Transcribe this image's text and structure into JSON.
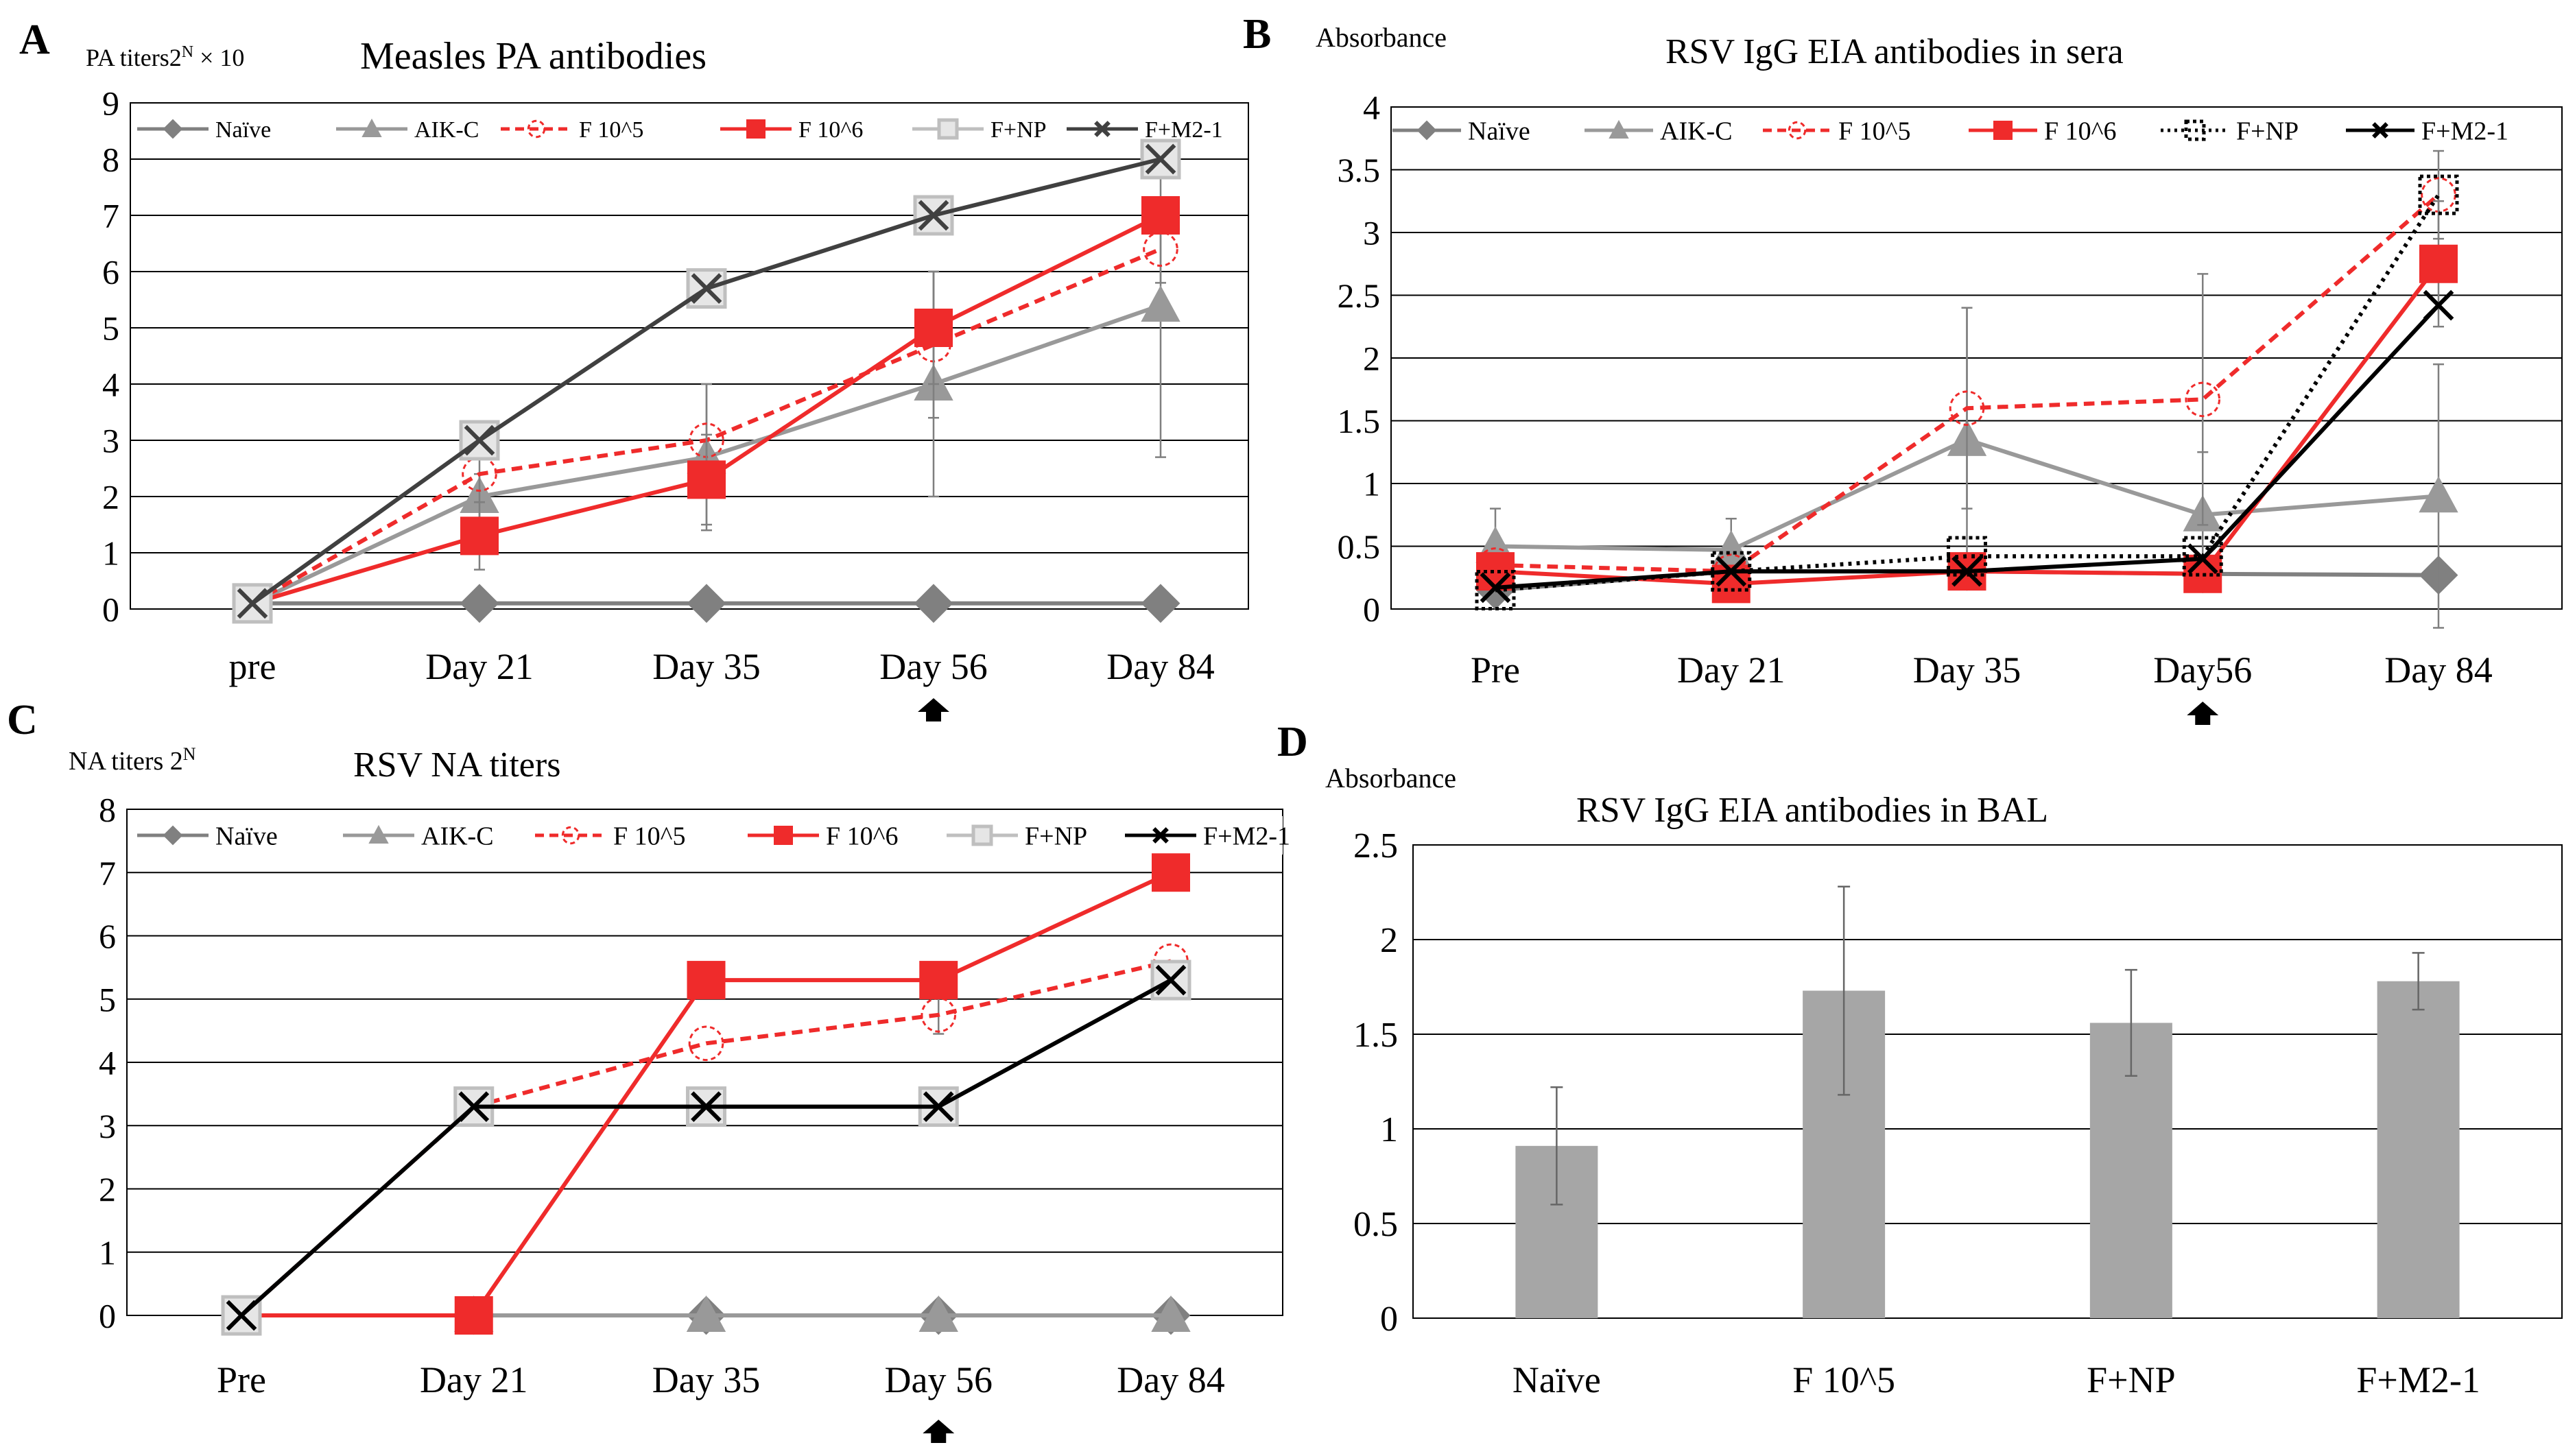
{
  "chart_data": [
    {
      "panel": "A",
      "type": "line",
      "title": "Measles PA antibodies",
      "ylabel": "PA titers2^N × 10",
      "ylabel_parts": {
        "main": "PA titers2",
        "sup": "N",
        "tail": " × 10"
      },
      "categories": [
        "pre",
        "Day 21",
        "Day 35",
        "Day 56",
        "Day 84"
      ],
      "ylim": [
        0,
        9
      ],
      "yticks": [
        0,
        1,
        2,
        3,
        4,
        5,
        6,
        7,
        8,
        9
      ],
      "arrow_at": "Day 56",
      "legend": "top",
      "series": [
        {
          "name": "Naïve",
          "color": "#808080",
          "dash": "",
          "marker": "diamond",
          "values": [
            0.1,
            0.1,
            0.1,
            0.1,
            0.1
          ],
          "err": [
            0,
            0,
            0,
            0,
            0
          ]
        },
        {
          "name": "AIK-C",
          "color": "#999999",
          "dash": "",
          "marker": "triangle",
          "values": [
            0.1,
            2.0,
            2.7,
            4.0,
            5.4
          ],
          "err": [
            0,
            0.4,
            1.3,
            2.0,
            2.7
          ]
        },
        {
          "name": "F 10^5",
          "color": "#ef2b2b",
          "dash": "dash",
          "marker": "circle-dashed",
          "values": [
            0.1,
            2.4,
            3.0,
            4.7,
            6.4
          ],
          "err": [
            0,
            0.5,
            1.0,
            1.3,
            0.6
          ]
        },
        {
          "name": "F 10^6",
          "color": "#ef2b2b",
          "dash": "",
          "marker": "square",
          "values": [
            0.1,
            1.3,
            2.3,
            5.0,
            7.0
          ],
          "err": [
            0,
            0.6,
            0.8,
            1.0,
            0
          ]
        },
        {
          "name": "F+NP",
          "color": "#bfbfbf",
          "dash": "",
          "marker": "square-open",
          "values": [
            0.1,
            3.0,
            5.7,
            7.0,
            8.0
          ],
          "err": [
            0,
            0,
            0,
            0,
            0
          ]
        },
        {
          "name": "F+M2-1",
          "color": "#404040",
          "dash": "",
          "marker": "x",
          "values": [
            0.1,
            3.0,
            5.7,
            7.0,
            8.0
          ],
          "err": [
            0,
            0,
            0,
            0,
            0
          ]
        }
      ]
    },
    {
      "panel": "B",
      "type": "line",
      "title": "RSV IgG EIA antibodies in sera",
      "ylabel": "Absorbance",
      "categories": [
        "Pre",
        "Day 21",
        "Day 35",
        "Day56",
        "Day 84"
      ],
      "ylim": [
        0,
        4
      ],
      "yticks": [
        0,
        0.5,
        1,
        1.5,
        2,
        2.5,
        3,
        3.5,
        4
      ],
      "arrow_at": "Day56",
      "legend": "top",
      "series": [
        {
          "name": "Naïve",
          "color": "#808080",
          "dash": "",
          "marker": "diamond",
          "values": [
            0.15,
            0.3,
            0.3,
            0.28,
            0.27
          ],
          "err": [
            0,
            0,
            0,
            0,
            0
          ]
        },
        {
          "name": "AIK-C",
          "color": "#999999",
          "dash": "",
          "marker": "triangle",
          "values": [
            0.5,
            0.47,
            1.35,
            0.75,
            0.9
          ],
          "err": [
            0.3,
            0.25,
            1.05,
            0.5,
            1.05
          ]
        },
        {
          "name": "F 10^5",
          "color": "#ef2b2b",
          "dash": "dash",
          "marker": "circle-dashed",
          "values": [
            0.35,
            0.3,
            1.6,
            1.67,
            3.3
          ],
          "err": [
            0,
            0,
            0.8,
            1.0,
            0.35
          ]
        },
        {
          "name": "F 10^6",
          "color": "#ef2b2b",
          "dash": "",
          "marker": "square",
          "values": [
            0.3,
            0.2,
            0.3,
            0.28,
            2.75
          ],
          "err": [
            0,
            0,
            0,
            0,
            0.5
          ]
        },
        {
          "name": "F+NP",
          "color": "#000000",
          "dash": "dot",
          "marker": "square-dotted",
          "values": [
            0.15,
            0.3,
            0.42,
            0.42,
            3.3
          ],
          "err": [
            0,
            0,
            0,
            0,
            0
          ]
        },
        {
          "name": "F+M2-1",
          "color": "#000000",
          "dash": "",
          "marker": "x",
          "values": [
            0.17,
            0.3,
            0.3,
            0.4,
            2.42
          ],
          "err": [
            0,
            0,
            0,
            0,
            0
          ]
        }
      ]
    },
    {
      "panel": "C",
      "type": "line",
      "title": "RSV NA titers",
      "ylabel": "NA titers 2^N",
      "ylabel_parts": {
        "main": "NA titers  2",
        "sup": "N",
        "tail": ""
      },
      "categories": [
        "Pre",
        "Day 21",
        "Day 35",
        "Day 56",
        "Day 84"
      ],
      "ylim": [
        0,
        8
      ],
      "yticks": [
        0,
        1,
        2,
        3,
        4,
        5,
        6,
        7,
        8
      ],
      "arrow_at": "Day 56",
      "legend": "top",
      "series": [
        {
          "name": "Naïve",
          "color": "#808080",
          "dash": "",
          "marker": "diamond",
          "values": [
            0,
            0,
            0,
            0,
            0
          ],
          "err": [
            0,
            0,
            0,
            0,
            0
          ]
        },
        {
          "name": "AIK-C",
          "color": "#999999",
          "dash": "",
          "marker": "triangle",
          "values": [
            0,
            0,
            0,
            0,
            0
          ],
          "err": [
            0,
            0,
            0,
            0,
            0
          ]
        },
        {
          "name": "F 10^5",
          "color": "#ef2b2b",
          "dash": "dash",
          "marker": "circle-dashed",
          "values": [
            0,
            3.3,
            4.3,
            4.75,
            5.6
          ],
          "err": [
            0,
            0,
            0,
            0.3,
            0
          ]
        },
        {
          "name": "F 10^6",
          "color": "#ef2b2b",
          "dash": "",
          "marker": "square",
          "values": [
            0,
            0,
            5.3,
            5.3,
            7.0
          ],
          "err": [
            0,
            0,
            0,
            0,
            0
          ]
        },
        {
          "name": "F+NP",
          "color": "#bfbfbf",
          "dash": "",
          "marker": "square-open",
          "values": [
            0,
            3.3,
            3.3,
            3.3,
            5.3
          ],
          "err": [
            0,
            0,
            0,
            0,
            0
          ]
        },
        {
          "name": "F+M2-1",
          "color": "#000000",
          "dash": "",
          "marker": "x",
          "values": [
            0,
            3.3,
            3.3,
            3.3,
            5.3
          ],
          "err": [
            0,
            0,
            0,
            0,
            0
          ]
        }
      ]
    },
    {
      "panel": "D",
      "type": "bar",
      "title": "RSV IgG EIA antibodies in BAL",
      "ylabel": "Absorbance",
      "categories": [
        "Naïve",
        "F 10^5",
        "F+NP",
        "F+M2-1"
      ],
      "values": [
        0.91,
        1.73,
        1.56,
        1.78
      ],
      "err": [
        0.31,
        0.55,
        0.28,
        0.15
      ],
      "bar_color": "#a6a6a6",
      "ylim": [
        0,
        2.5
      ],
      "yticks": [
        0,
        0.5,
        1,
        1.5,
        2,
        2.5
      ]
    }
  ]
}
